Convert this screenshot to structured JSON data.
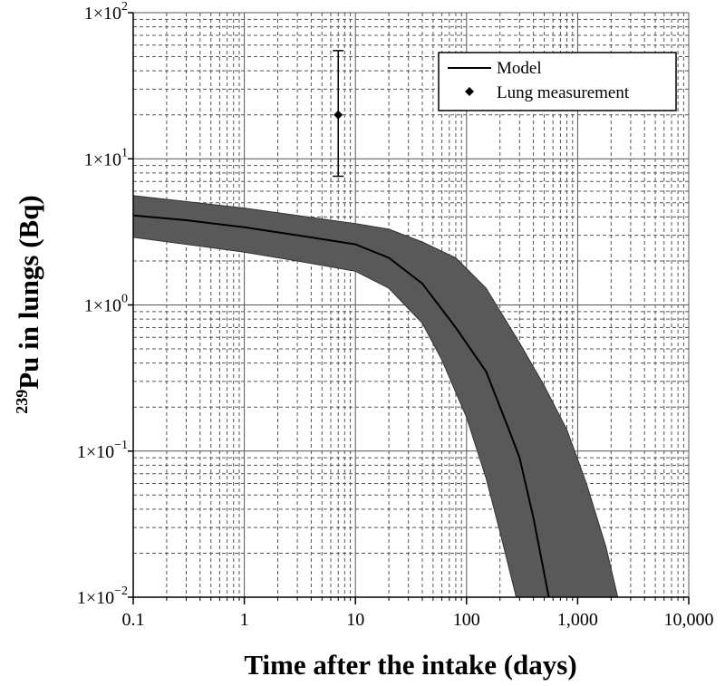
{
  "chart_data": {
    "type": "line",
    "xlabel": "Time after the intake (days)",
    "ylabel_sup": "239",
    "ylabel_main": "Pu in lungs (Bq)",
    "x_scale": "log",
    "y_scale": "log",
    "xlim": [
      0.1,
      10000
    ],
    "ylim": [
      0.01,
      100
    ],
    "x_ticks": [
      0.1,
      1,
      10,
      100,
      1000,
      10000
    ],
    "x_tick_labels": [
      "0.1",
      "1",
      "10",
      "100",
      "1,000",
      "10,000"
    ],
    "y_ticks": [
      0.01,
      0.1,
      1,
      10,
      100
    ],
    "y_tick_labels": [
      {
        "base": "1×10",
        "exp": "−2"
      },
      {
        "base": "1×10",
        "exp": "−1"
      },
      {
        "base": "1×10",
        "exp": "0"
      },
      {
        "base": "1×10",
        "exp": "1"
      },
      {
        "base": "1×10",
        "exp": "2"
      }
    ],
    "grid": true,
    "legend_position": "top-right",
    "series": [
      {
        "name": "Model",
        "kind": "line",
        "x": [
          0.1,
          0.3,
          1,
          3,
          10,
          20,
          40,
          80,
          150,
          250,
          300,
          400,
          550
        ],
        "y": [
          4.1,
          3.8,
          3.4,
          3.0,
          2.6,
          2.1,
          1.4,
          0.7,
          0.35,
          0.13,
          0.09,
          0.035,
          0.01
        ]
      },
      {
        "name": "Lung measurement",
        "kind": "point",
        "x": [
          7
        ],
        "y": [
          20
        ],
        "y_err_low": [
          7.6
        ],
        "y_err_high": [
          55
        ]
      }
    ],
    "band": {
      "x_upper": [
        0.1,
        0.3,
        1,
        3,
        10,
        20,
        40,
        80,
        150,
        300,
        500,
        800,
        1200,
        1800,
        2300
      ],
      "y_upper": [
        5.6,
        5.1,
        4.6,
        4.1,
        3.6,
        3.3,
        2.7,
        2.1,
        1.3,
        0.55,
        0.28,
        0.14,
        0.06,
        0.022,
        0.01
      ],
      "x_lower": [
        0.1,
        0.3,
        1,
        3,
        10,
        20,
        40,
        60,
        100,
        150,
        200,
        280
      ],
      "y_lower": [
        2.9,
        2.6,
        2.3,
        2.0,
        1.7,
        1.3,
        0.75,
        0.42,
        0.17,
        0.065,
        0.028,
        0.01
      ],
      "color": "#595959"
    },
    "legend": [
      {
        "label": "Model",
        "symbol": "line"
      },
      {
        "label": "Lung measurement",
        "symbol": "diamond"
      }
    ]
  }
}
